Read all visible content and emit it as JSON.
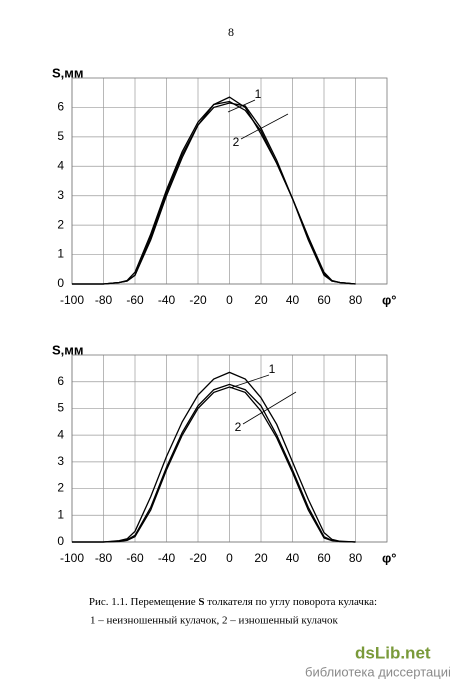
{
  "page_number": "8",
  "chart_data": [
    {
      "type": "line",
      "ylabel": "S,мм",
      "xlabel": "φ°",
      "x": [
        -100,
        -90,
        -80,
        -70,
        -65,
        -60,
        -50,
        -40,
        -30,
        -20,
        -10,
        0,
        10,
        20,
        30,
        40,
        50,
        60,
        65,
        70,
        80
      ],
      "series": [
        {
          "color": "#000000",
          "values": [
            0,
            0,
            0,
            0.05,
            0.1,
            0.3,
            1.6,
            3.1,
            4.4,
            5.4,
            6.1,
            6.35,
            6.0,
            5.1,
            4.1,
            2.9,
            1.6,
            0.35,
            0.1,
            0.05,
            0
          ]
        },
        {
          "color": "#000000",
          "values": [
            0,
            0,
            0,
            0.05,
            0.12,
            0.4,
            1.7,
            3.2,
            4.5,
            5.5,
            6.1,
            6.2,
            5.9,
            5.2,
            4.1,
            2.9,
            1.6,
            0.4,
            0.12,
            0.05,
            0
          ]
        },
        {
          "color": "#000000",
          "values": [
            0,
            0,
            0,
            0.05,
            0.1,
            0.3,
            1.5,
            3.0,
            4.3,
            5.4,
            6.0,
            6.15,
            6.05,
            5.3,
            4.2,
            2.9,
            1.5,
            0.3,
            0.1,
            0.05,
            0
          ]
        }
      ],
      "annotations": [
        "1",
        "2"
      ],
      "xlim": [
        -100,
        100
      ],
      "xticks": [
        -100,
        -80,
        -60,
        -40,
        -20,
        0,
        20,
        40,
        60,
        80
      ],
      "ylim": [
        0,
        7
      ],
      "yticks": [
        0,
        1,
        2,
        3,
        4,
        5,
        6
      ],
      "grid": true
    },
    {
      "type": "line",
      "ylabel": "S,мм",
      "xlabel": "φ°",
      "x": [
        -100,
        -90,
        -80,
        -70,
        -65,
        -60,
        -50,
        -40,
        -30,
        -20,
        -10,
        0,
        10,
        20,
        30,
        40,
        50,
        60,
        65,
        70,
        80
      ],
      "series": [
        {
          "color": "#000000",
          "values": [
            0,
            0,
            0,
            0.05,
            0.12,
            0.4,
            1.7,
            3.2,
            4.5,
            5.5,
            6.1,
            6.35,
            6.1,
            5.4,
            4.4,
            3.0,
            1.6,
            0.35,
            0.1,
            0.03,
            0
          ]
        },
        {
          "color": "#000000",
          "values": [
            0,
            0,
            0,
            0.03,
            0.08,
            0.25,
            1.3,
            2.8,
            4.1,
            5.1,
            5.7,
            5.9,
            5.7,
            5.1,
            4.0,
            2.7,
            1.3,
            0.2,
            0.06,
            0.02,
            0
          ]
        },
        {
          "color": "#000000",
          "values": [
            0,
            0,
            0,
            0.02,
            0.06,
            0.2,
            1.2,
            2.7,
            4.0,
            5.0,
            5.6,
            5.8,
            5.6,
            4.9,
            3.9,
            2.6,
            1.2,
            0.15,
            0.05,
            0.02,
            0
          ]
        }
      ],
      "annotations": [
        "1",
        "2"
      ],
      "xlim": [
        -100,
        100
      ],
      "xticks": [
        -100,
        -80,
        -60,
        -40,
        -20,
        0,
        20,
        40,
        60,
        80
      ],
      "ylim": [
        0,
        7
      ],
      "yticks": [
        0,
        1,
        2,
        3,
        4,
        5,
        6
      ],
      "grid": true
    }
  ],
  "caption": {
    "line1": [
      "Рис. 1.1. Перемещение ",
      "S",
      " толкателя по углу поворота кулачка:"
    ],
    "line2": "1 – неизношенный кулачок, 2 – изношенный кулачок"
  },
  "watermark": {
    "logo": "dsLib.net",
    "tagline": "библиотека диссертаций"
  }
}
